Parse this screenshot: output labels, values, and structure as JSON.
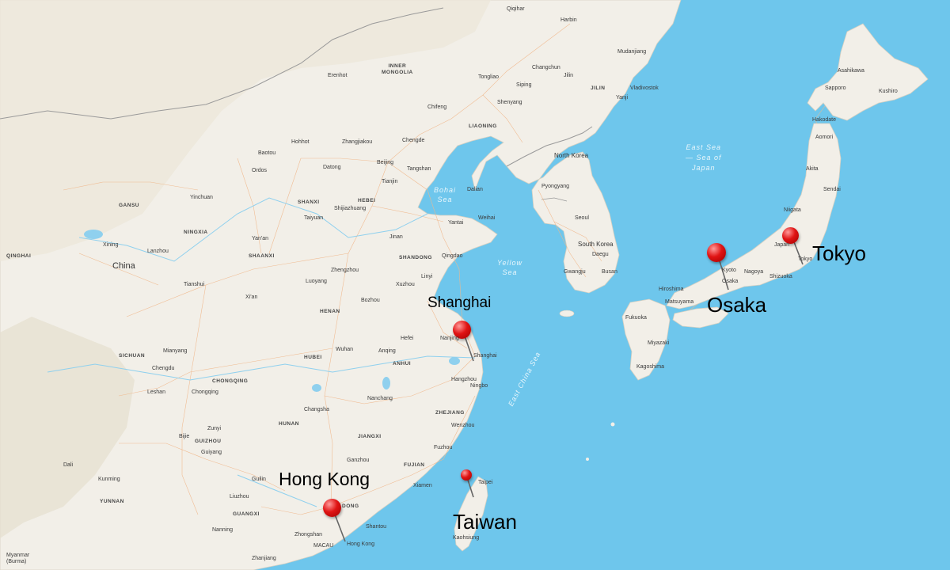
{
  "map": {
    "land_color": "#f2efe8",
    "water_color": "#6ec6ec",
    "pin_color": "#e01414"
  },
  "callouts": [
    {
      "id": "tokyo",
      "label": "Tokyo"
    },
    {
      "id": "osaka",
      "label": "Osaka"
    },
    {
      "id": "shanghai",
      "label": "Shanghai"
    },
    {
      "id": "hongkong",
      "label": "Hong Kong"
    },
    {
      "id": "taiwan",
      "label": "Taiwan"
    }
  ],
  "seas": {
    "east_sea": "East Sea\n— Sea of\nJapan",
    "bohai": "Bohai\nSea",
    "yellow": "Yellow\nSea",
    "east_china": "East China Sea"
  },
  "regions": {
    "inner_mongolia": "INNER\nMONGOLIA",
    "jilin": "JILIN",
    "liaoning": "LIAONING",
    "hebei": "HEBEI",
    "shanxi": "SHANXI",
    "shaanxi": "SHAANXI",
    "shandong": "SHANDONG",
    "henan": "HENAN",
    "hubei": "HUBEI",
    "anhui": "ANHUI",
    "zhejiang": "ZHEJIANG",
    "jiangxi": "JIANGXI",
    "hunan": "HUNAN",
    "fujian": "FUJIAN",
    "guizhou": "GUIZHOU",
    "guangxi": "GUANGXI",
    "yunnan": "YUNNAN",
    "sichuan": "SICHUAN",
    "chongqing": "CHONGQING",
    "gansu": "GANSU",
    "ningxia": "NINGXIA",
    "qinghai": "QINGHAI",
    "guangdong": "DONG"
  },
  "places": {
    "china": "China",
    "north_korea": "North Korea",
    "south_korea": "South Korea",
    "japan": "Japan",
    "myanmar": "Myanmar\n(Burma)",
    "beijing": "Beijing",
    "tianjin": "Tianjin",
    "shanghai_small": "Shanghai",
    "nanjing": "Nanjing",
    "hong_kong_small": "Hong Kong",
    "macau": "MACAU",
    "taipei": "Taipei",
    "seoul": "Seoul",
    "busan": "Busan",
    "tokyo_small": "Tokyo",
    "osaka_small": "Osaka",
    "nagoya": "Nagoya",
    "hiroshima": "Hiroshima",
    "sapporo": "Sapporo",
    "harbin": "Harbin",
    "changchun": "Changchun",
    "shenyang": "Shenyang",
    "dalian": "Dalian",
    "qingdao": "Qingdao",
    "jinan": "Jinan",
    "zhengzhou": "Zhengzhou",
    "xian": "Xi'an",
    "wuhan": "Wuhan",
    "changsha": "Changsha",
    "chengdu": "Chengdu",
    "chongqing_city": "Chongqing",
    "guiyang": "Guiyang",
    "kunming": "Kunming",
    "nanning": "Nanning",
    "guangzhou": "Zhongshan",
    "fuzhou": "Fuzhou",
    "xiamen": "Xiamen",
    "hangzhou": "Hangzhou",
    "ningbo": "Ningbo",
    "hefei": "Hefei",
    "nanchang": "Nanchang",
    "lanzhou": "Lanzhou",
    "xining": "Xining",
    "yinchuan": "Yinchuan",
    "taiyuan": "Taiyuan",
    "shijiazhuang": "Shijiazhuang",
    "hohhot": "Hohhot",
    "baotou": "Baotou",
    "datong": "Datong",
    "vladivostok": "Vladivostok",
    "sendai": "Sendai",
    "niigata": "Niigata",
    "fukuoka": "Fukuoka",
    "kagoshima": "Kagoshima",
    "kaohsiung": "Kaohsiung",
    "shantou": "Shantou",
    "wenzhou": "Wenzhou",
    "yantai": "Yantai",
    "weihai": "Weihai",
    "akita": "Akita",
    "aomori": "Aomori",
    "hakodate": "Hakodate",
    "asahikawa": "Asahikawa",
    "kushiro": "Kushiro",
    "shizuoka": "Shizuoka",
    "kyoto": "Kyoto",
    "matsuyama": "Matsuyama",
    "miyazaki": "Miyazaki",
    "gwangju": "Gwangju",
    "daegu": "Daegu",
    "pyongyang": "Pyongyang",
    "erenhot": "Erenhot",
    "ordos": "Ordos",
    "yan_an": "Yan'an",
    "luoyang": "Luoyang",
    "xuzhou": "Xuzhou",
    "bozhou": "Bozhou",
    "anqing": "Anqing",
    "ganzhou": "Ganzhou",
    "guilin": "Guilin",
    "liuzhou": "Liuzhou",
    "zhanjiang": "Zhanjiang",
    "bijie": "Bijie",
    "zunyi": "Zunyi",
    "mianyang": "Mianyang",
    "leshan": "Leshan",
    "dali": "Dali",
    "tianshui": "Tianshui",
    "linyi": "Linyi",
    "tangshan": "Tangshan",
    "chengde": "Chengde",
    "zhangjiakou": "Zhangjiakou",
    "chifeng": "Chifeng",
    "tongliao": "Tongliao",
    "siping": "Siping",
    "jilin_city": "Jilin",
    "yanji": "Yanji",
    "mudanjiang": "Mudanjiang",
    "qiqihar": "Qiqihar"
  }
}
